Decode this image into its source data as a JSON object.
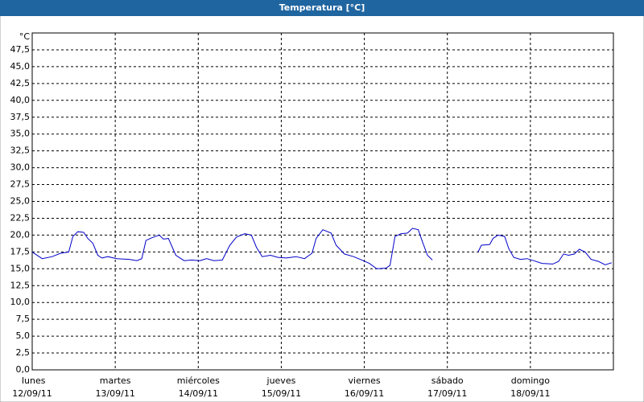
{
  "chart_data": {
    "type": "line",
    "title": "Temperatura [°C]",
    "y_unit": "°C",
    "xlim": [
      0,
      7
    ],
    "ylim": [
      0,
      50
    ],
    "xticks": [
      {
        "value": 0,
        "label": "lunes"
      },
      {
        "value": 1,
        "label": "martes"
      },
      {
        "value": 2,
        "label": "miércoles"
      },
      {
        "value": 3,
        "label": "jueves"
      },
      {
        "value": 4,
        "label": "viernes"
      },
      {
        "value": 5,
        "label": "sábado"
      },
      {
        "value": 6,
        "label": "domingo"
      }
    ],
    "xtick_dates": [
      "12/09/11",
      "13/09/11",
      "14/09/11",
      "15/09/11",
      "16/09/11",
      "17/09/11",
      "18/09/11"
    ],
    "yticks": [
      {
        "value": 0,
        "label": "0,0"
      },
      {
        "value": 2.5,
        "label": "2,5"
      },
      {
        "value": 5,
        "label": "5,0"
      },
      {
        "value": 7.5,
        "label": "7,5"
      },
      {
        "value": 10,
        "label": "10,0"
      },
      {
        "value": 12.5,
        "label": "12,5"
      },
      {
        "value": 15,
        "label": "15,0"
      },
      {
        "value": 17.5,
        "label": "17,5"
      },
      {
        "value": 20,
        "label": "20,0"
      },
      {
        "value": 22.5,
        "label": "22,5"
      },
      {
        "value": 25,
        "label": "25,0"
      },
      {
        "value": 27.5,
        "label": "27,5"
      },
      {
        "value": 30,
        "label": "30,0"
      },
      {
        "value": 32.5,
        "label": "32,5"
      },
      {
        "value": 35,
        "label": "35,0"
      },
      {
        "value": 37.5,
        "label": "37,5"
      },
      {
        "value": 40,
        "label": "40,0"
      },
      {
        "value": 42.5,
        "label": "42,5"
      },
      {
        "value": 45,
        "label": "45,0"
      },
      {
        "value": 47.5,
        "label": "47,5"
      }
    ],
    "grid": true,
    "color": "#0000c8",
    "x": [
      0,
      0.12,
      0.24,
      0.34,
      0.44,
      0.49,
      0.55,
      0.62,
      0.67,
      0.73,
      0.79,
      0.84,
      0.91,
      1.02,
      1.17,
      1.26,
      1.32,
      1.37,
      1.44,
      1.53,
      1.58,
      1.64,
      1.73,
      1.83,
      1.92,
      2.02,
      2.1,
      2.19,
      2.29,
      2.38,
      2.46,
      2.56,
      2.64,
      2.7,
      2.77,
      2.87,
      2.96,
      3.06,
      3.18,
      3.28,
      3.37,
      3.42,
      3.5,
      3.6,
      3.66,
      3.76,
      3.87,
      3.97,
      4.06,
      4.15,
      4.26,
      4.31,
      4.37,
      4.44,
      4.52,
      4.58,
      4.65,
      4.7,
      4.76,
      4.82,
      5.1,
      5.37,
      5.41,
      5.51,
      5.55,
      5.61,
      5.69,
      5.74,
      5.8,
      5.88,
      5.96,
      6.04,
      6.14,
      6.27,
      6.34,
      6.4,
      6.46,
      6.53,
      6.59,
      6.66,
      6.73,
      6.82,
      6.9,
      6.98
    ],
    "values": [
      17.5,
      16.5,
      16.8,
      17.3,
      17.5,
      19.8,
      20.5,
      20.4,
      19.5,
      18.8,
      17.0,
      16.6,
      16.8,
      16.5,
      16.4,
      16.2,
      16.5,
      19.2,
      19.6,
      20.0,
      19.4,
      19.5,
      17.0,
      16.2,
      16.3,
      16.2,
      16.5,
      16.2,
      16.3,
      18.5,
      19.7,
      20.2,
      20.0,
      18.2,
      16.8,
      17.0,
      16.7,
      16.6,
      16.8,
      16.5,
      17.3,
      19.5,
      20.8,
      20.3,
      18.5,
      17.2,
      16.8,
      16.3,
      15.8,
      15.0,
      15.1,
      15.5,
      19.8,
      20.2,
      20.3,
      21.0,
      20.8,
      19.0,
      17.0,
      16.3,
      null,
      17.5,
      18.5,
      18.6,
      19.5,
      20.0,
      19.8,
      18.0,
      16.7,
      16.4,
      16.5,
      16.2,
      15.8,
      15.7,
      16.1,
      17.2,
      17.0,
      17.2,
      17.9,
      17.5,
      16.4,
      16.1,
      15.6,
      15.9
    ]
  }
}
